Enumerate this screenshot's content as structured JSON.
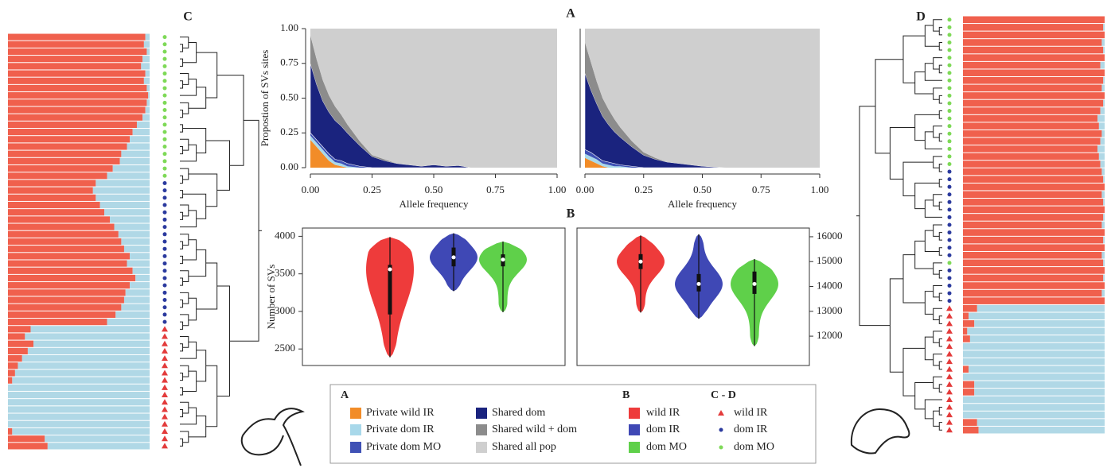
{
  "panel_labels": [
    "A",
    "B",
    "C",
    "D"
  ],
  "legend": {
    "titles": [
      "A",
      "B",
      "C - D"
    ],
    "groups": [
      {
        "name": "wild IR",
        "color": "#e33b3b",
        "marker": "triangle"
      },
      {
        "name": "dom IR",
        "color": "#2b3a9e",
        "marker": "dot"
      },
      {
        "name": "dom MO",
        "color": "#7ed957",
        "marker": "dot"
      }
    ]
  },
  "chart_data": [
    {
      "type": "area",
      "ylabel": "Propostion of SVs sites",
      "xlabel": "Allele frequency",
      "x": [
        0,
        0.025,
        0.05,
        0.075,
        0.1,
        0.125,
        0.15,
        0.2,
        0.25,
        0.3,
        0.35,
        0.4,
        0.45,
        0.5,
        0.55,
        0.6,
        0.65,
        0.7,
        0.8,
        0.9,
        1
      ],
      "xlim": [
        0,
        1
      ],
      "ylim": [
        0,
        1
      ],
      "xticks": [
        {
          "value": 0,
          "label": "0.00"
        },
        {
          "value": 0.25,
          "label": "0.25"
        },
        {
          "value": 0.5,
          "label": "0.50"
        },
        {
          "value": 0.75,
          "label": "0.75"
        },
        {
          "value": 1,
          "label": "1.00"
        }
      ],
      "yticks": [
        {
          "value": 0,
          "label": "0.00"
        },
        {
          "value": 0.25,
          "label": "0.25"
        },
        {
          "value": 0.5,
          "label": "0.50"
        },
        {
          "value": 0.75,
          "label": "0.75"
        },
        {
          "value": 1,
          "label": "1.00"
        }
      ],
      "series": [
        {
          "name": "Private wild IR",
          "color": "#f28c28",
          "values": [
            0.2,
            0.15,
            0.1,
            0.05,
            0.02,
            0.01,
            0,
            0,
            0,
            0,
            0,
            0,
            0,
            0,
            0,
            0,
            0,
            0,
            0,
            0,
            0
          ]
        },
        {
          "name": "Private dom IR",
          "color": "#a8d8ea",
          "values": [
            0.03,
            0.03,
            0.03,
            0.03,
            0.02,
            0.02,
            0.01,
            0,
            0,
            0,
            0,
            0,
            0,
            0,
            0,
            0,
            0,
            0,
            0,
            0,
            0
          ]
        },
        {
          "name": "Private dom MO",
          "color": "#3f51b5",
          "values": [
            0.02,
            0.02,
            0.02,
            0.02,
            0.02,
            0.02,
            0.02,
            0.01,
            0,
            0,
            0,
            0,
            0,
            0,
            0,
            0,
            0,
            0,
            0,
            0,
            0
          ]
        },
        {
          "name": "Shared dom",
          "color": "#1a237e",
          "values": [
            0.5,
            0.4,
            0.33,
            0.3,
            0.28,
            0.25,
            0.22,
            0.15,
            0.08,
            0.05,
            0.03,
            0.02,
            0.01,
            0.02,
            0.01,
            0.015,
            0,
            0,
            0,
            0,
            0
          ]
        },
        {
          "name": "Shared wild + dom",
          "color": "#8c8c8c",
          "values": [
            0.2,
            0.18,
            0.15,
            0.12,
            0.1,
            0.08,
            0.06,
            0.03,
            0.01,
            0.01,
            0,
            0,
            0,
            0,
            0,
            0,
            0,
            0,
            0,
            0,
            0
          ]
        },
        {
          "name": "Shared all pop",
          "color": "#cfcfcf",
          "values": [
            0.05,
            0.22,
            0.37,
            0.48,
            0.56,
            0.62,
            0.69,
            0.81,
            0.91,
            0.94,
            0.97,
            0.98,
            0.99,
            0.98,
            0.99,
            0.985,
            1,
            1,
            1,
            1,
            1
          ]
        }
      ]
    },
    {
      "type": "area",
      "xlabel": "Allele frequency",
      "x": [
        0,
        0.025,
        0.05,
        0.075,
        0.1,
        0.125,
        0.15,
        0.2,
        0.25,
        0.3,
        0.35,
        0.4,
        0.45,
        0.5,
        0.55,
        0.6,
        0.65,
        0.7,
        0.8,
        0.9,
        1
      ],
      "xlim": [
        0,
        1
      ],
      "ylim": [
        0,
        1
      ],
      "xticks": [
        {
          "value": 0,
          "label": "0.00"
        },
        {
          "value": 0.25,
          "label": "0.25"
        },
        {
          "value": 0.5,
          "label": "0.50"
        },
        {
          "value": 0.75,
          "label": "0.75"
        },
        {
          "value": 1,
          "label": "1.00"
        }
      ],
      "series": [
        {
          "color": "#f28c28",
          "values": [
            0.07,
            0.05,
            0.03,
            0.01,
            0,
            0,
            0,
            0,
            0,
            0,
            0,
            0,
            0,
            0,
            0,
            0,
            0,
            0,
            0,
            0,
            0
          ]
        },
        {
          "color": "#a8d8ea",
          "values": [
            0.03,
            0.03,
            0.03,
            0.02,
            0.02,
            0.01,
            0.01,
            0,
            0,
            0,
            0,
            0,
            0,
            0,
            0,
            0,
            0,
            0,
            0,
            0,
            0
          ]
        },
        {
          "color": "#3f51b5",
          "values": [
            0.03,
            0.03,
            0.02,
            0.02,
            0.02,
            0.02,
            0.01,
            0.01,
            0,
            0,
            0,
            0,
            0,
            0,
            0,
            0,
            0,
            0,
            0,
            0,
            0
          ]
        },
        {
          "color": "#1a237e",
          "values": [
            0.55,
            0.45,
            0.38,
            0.32,
            0.27,
            0.23,
            0.2,
            0.14,
            0.09,
            0.06,
            0.04,
            0.03,
            0.02,
            0.01,
            0.005,
            0,
            0,
            0,
            0,
            0,
            0
          ]
        },
        {
          "color": "#8c8c8c",
          "values": [
            0.22,
            0.2,
            0.16,
            0.13,
            0.11,
            0.09,
            0.07,
            0.04,
            0.02,
            0.01,
            0,
            0,
            0,
            0,
            0,
            0,
            0,
            0,
            0,
            0,
            0
          ]
        },
        {
          "color": "#cfcfcf",
          "values": [
            0.1,
            0.24,
            0.38,
            0.5,
            0.58,
            0.65,
            0.71,
            0.81,
            0.89,
            0.93,
            0.96,
            0.97,
            0.98,
            0.99,
            0.995,
            1,
            1,
            1,
            1,
            1,
            1
          ]
        }
      ]
    },
    {
      "type": "violin",
      "ylabel": "Number of SVs",
      "ylim": [
        2280,
        4110
      ],
      "yticks": [
        2500,
        3000,
        3500,
        4000
      ],
      "axis_side": "left",
      "series": [
        {
          "name": "wild IR",
          "color": "#ee3b3b",
          "min": 2390,
          "q1": 2960,
          "median": 3560,
          "q3": 3620,
          "max": 3990
        },
        {
          "name": "dom IR",
          "color": "#3f48b5",
          "min": 3270,
          "q1": 3600,
          "median": 3720,
          "q3": 3850,
          "max": 4040
        },
        {
          "name": "dom MO",
          "color": "#5fd04a",
          "min": 2990,
          "q1": 3600,
          "median": 3690,
          "q3": 3760,
          "max": 3930
        }
      ]
    },
    {
      "type": "violin",
      "ylim": [
        10820,
        16350
      ],
      "yticks": [
        12000,
        13000,
        14000,
        15000,
        16000
      ],
      "axis_side": "right",
      "series": [
        {
          "color": "#ee3b3b",
          "min": 12950,
          "q1": 14700,
          "median": 15000,
          "q3": 15300,
          "max": 16050
        },
        {
          "color": "#3f48b5",
          "min": 12700,
          "q1": 13800,
          "median": 14100,
          "q3": 14500,
          "max": 16100
        },
        {
          "color": "#5fd04a",
          "min": 11600,
          "q1": 13700,
          "median": 14100,
          "q3": 14600,
          "max": 15100
        }
      ]
    },
    {
      "type": "admixture",
      "xlim": [
        0,
        1
      ],
      "bar_side": "left",
      "groups": [
        "dom MO",
        "dom MO",
        "dom MO",
        "dom MO",
        "dom MO",
        "dom MO",
        "dom MO",
        "dom MO",
        "dom MO",
        "dom MO",
        "dom MO",
        "dom MO",
        "dom MO",
        "dom MO",
        "dom MO",
        "dom MO",
        "dom MO",
        "dom MO",
        "dom MO",
        "dom MO",
        "dom IR",
        "dom IR",
        "dom IR",
        "dom IR",
        "dom IR",
        "dom IR",
        "dom IR",
        "dom IR",
        "dom IR",
        "dom IR",
        "dom IR",
        "dom IR",
        "dom IR",
        "dom IR",
        "dom IR",
        "dom IR",
        "dom IR",
        "dom IR",
        "dom IR",
        "dom IR",
        "wild IR",
        "wild IR",
        "wild IR",
        "wild IR",
        "wild IR",
        "wild IR",
        "wild IR",
        "wild IR",
        "wild IR",
        "wild IR",
        "wild IR",
        "wild IR",
        "wild IR",
        "wild IR",
        "wild IR",
        "wild IR",
        "wild IR"
      ],
      "series": [
        {
          "color": "#f0604d",
          "values": [
            0.97,
            0.96,
            0.98,
            0.95,
            0.94,
            0.97,
            0.96,
            0.98,
            0.99,
            0.98,
            0.97,
            0.95,
            0.91,
            0.88,
            0.86,
            0.84,
            0.8,
            0.79,
            0.74,
            0.7,
            0.62,
            0.6,
            0.62,
            0.65,
            0.68,
            0.72,
            0.75,
            0.78,
            0.8,
            0.82,
            0.86,
            0.84,
            0.88,
            0.9,
            0.86,
            0.83,
            0.82,
            0.8,
            0.76,
            0.7,
            0.16,
            0.12,
            0.18,
            0.14,
            0.1,
            0.07,
            0.05,
            0.03,
            0,
            0,
            0,
            0,
            0,
            0,
            0.03,
            0.26,
            0.28
          ]
        },
        {
          "color": "#b0d8e6",
          "values": [
            0.03,
            0.04,
            0.02,
            0.05,
            0.06,
            0.03,
            0.04,
            0.02,
            0.01,
            0.02,
            0.03,
            0.05,
            0.09,
            0.12,
            0.14,
            0.16,
            0.2,
            0.21,
            0.26,
            0.3,
            0.38,
            0.4,
            0.38,
            0.35,
            0.32,
            0.28,
            0.25,
            0.22,
            0.2,
            0.18,
            0.14,
            0.16,
            0.12,
            0.1,
            0.14,
            0.17,
            0.18,
            0.2,
            0.24,
            0.3,
            0.84,
            0.88,
            0.82,
            0.86,
            0.9,
            0.93,
            0.95,
            0.97,
            1,
            1,
            1,
            1,
            1,
            1,
            0.97,
            0.74,
            0.72
          ]
        }
      ]
    },
    {
      "type": "admixture",
      "xlim": [
        0,
        1
      ],
      "bar_side": "right",
      "groups": [
        "dom MO",
        "dom MO",
        "dom MO",
        "dom MO",
        "dom MO",
        "dom MO",
        "dom MO",
        "dom MO",
        "dom MO",
        "dom MO",
        "dom MO",
        "dom MO",
        "dom MO",
        "dom MO",
        "dom MO",
        "dom MO",
        "dom MO",
        "dom MO",
        "dom MO",
        "dom MO",
        "dom IR",
        "dom IR",
        "dom IR",
        "dom IR",
        "dom IR",
        "dom IR",
        "dom IR",
        "dom IR",
        "dom IR",
        "dom IR",
        "dom IR",
        "dom IR",
        "dom MO",
        "dom IR",
        "dom IR",
        "dom IR",
        "dom IR",
        "dom IR",
        "wild IR",
        "wild IR",
        "wild IR",
        "wild IR",
        "wild IR",
        "wild IR",
        "wild IR",
        "wild IR",
        "wild IR",
        "wild IR",
        "wild IR",
        "wild IR",
        "wild IR",
        "wild IR",
        "wild IR",
        "wild IR",
        "wild IR"
      ],
      "series": [
        {
          "color": "#f0604d",
          "values": [
            1,
            0.99,
            1,
            0.98,
            0.99,
            1,
            0.97,
            1,
            0.99,
            0.98,
            1,
            0.99,
            0.97,
            0.95,
            0.96,
            0.98,
            0.97,
            0.95,
            0.96,
            0.97,
            0.98,
            0.99,
            1,
            0.98,
            0.99,
            1,
            0.99,
            0.98,
            1,
            0.99,
            1,
            0.98,
            0.99,
            1,
            0.99,
            1,
            0.98,
            1,
            0.1,
            0.04,
            0.08,
            0.03,
            0.05,
            0,
            0,
            0,
            0.04,
            0,
            0.08,
            0.08,
            0,
            0,
            0,
            0.1,
            0.11
          ]
        },
        {
          "color": "#b0d8e6",
          "values": [
            0,
            0.01,
            0,
            0.02,
            0.01,
            0,
            0.03,
            0,
            0.01,
            0.02,
            0,
            0.01,
            0.03,
            0.05,
            0.04,
            0.02,
            0.03,
            0.05,
            0.04,
            0.03,
            0.02,
            0.01,
            0,
            0.02,
            0.01,
            0,
            0.01,
            0.02,
            0,
            0.01,
            0,
            0.02,
            0.01,
            0,
            0.01,
            0,
            0.02,
            0,
            0.9,
            0.96,
            0.92,
            0.97,
            0.95,
            1,
            1,
            1,
            0.96,
            1,
            0.92,
            0.92,
            1,
            1,
            1,
            0.9,
            0.89
          ]
        }
      ]
    }
  ]
}
